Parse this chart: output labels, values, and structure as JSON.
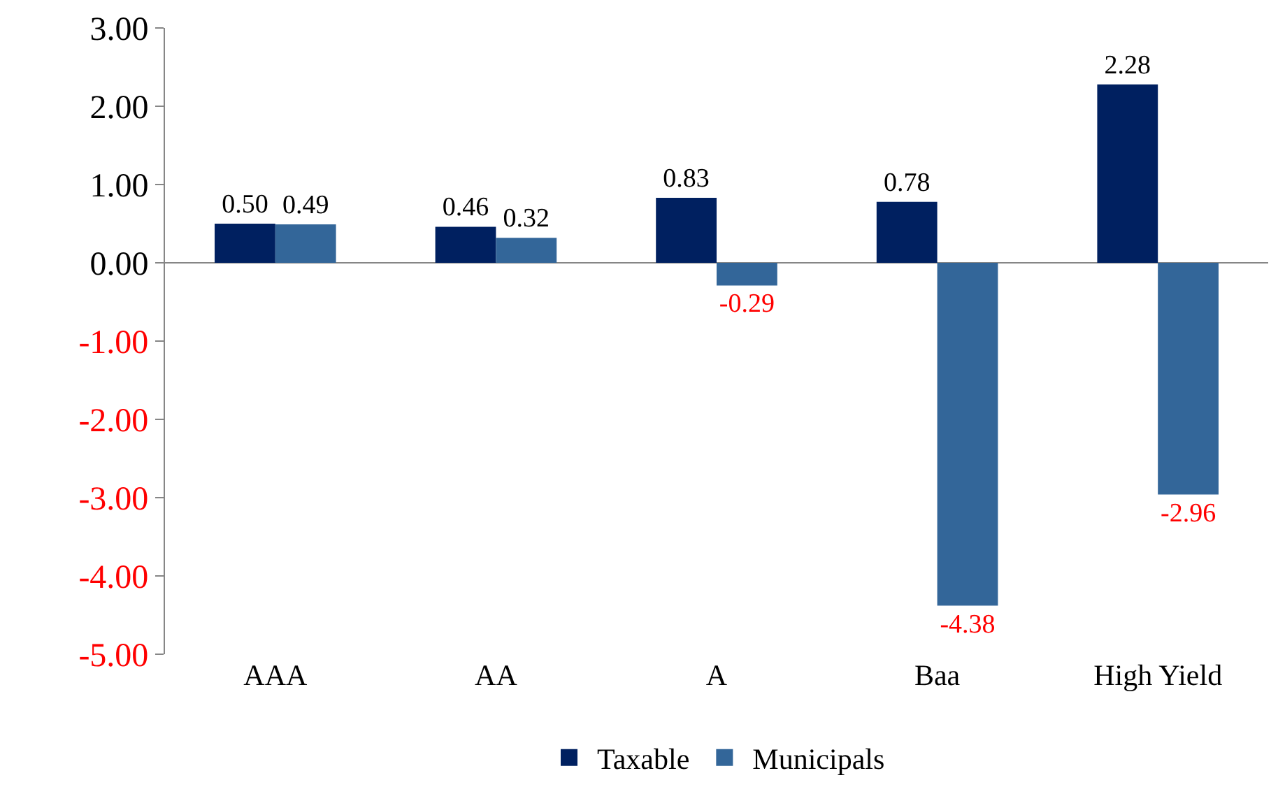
{
  "chart_data": {
    "type": "bar",
    "categories": [
      "AAA",
      "AA",
      "A",
      "Baa",
      "High Yield"
    ],
    "series": [
      {
        "name": "Taxable",
        "color": "#002060",
        "values": [
          0.5,
          0.46,
          0.83,
          0.78,
          2.28
        ],
        "value_labels": [
          "0.50",
          "0.46",
          "0.83",
          "0.78",
          "2.28"
        ]
      },
      {
        "name": "Municipals",
        "color": "#336699",
        "values": [
          0.49,
          0.32,
          -0.29,
          -4.38,
          -2.96
        ],
        "value_labels": [
          "0.49",
          "0.32",
          "-0.29",
          "-4.38",
          "-2.96"
        ]
      }
    ],
    "ylim": [
      -5,
      3
    ],
    "yticks": [
      {
        "value": 3,
        "label": "3.00"
      },
      {
        "value": 2,
        "label": "2.00"
      },
      {
        "value": 1,
        "label": "1.00"
      },
      {
        "value": 0,
        "label": "0.00"
      },
      {
        "value": -1,
        "label": "-1.00"
      },
      {
        "value": -2,
        "label": "-2.00"
      },
      {
        "value": -3,
        "label": "-3.00"
      },
      {
        "value": -4,
        "label": "-4.00"
      },
      {
        "value": -5,
        "label": "-5.00"
      }
    ],
    "legend": "bottom"
  }
}
